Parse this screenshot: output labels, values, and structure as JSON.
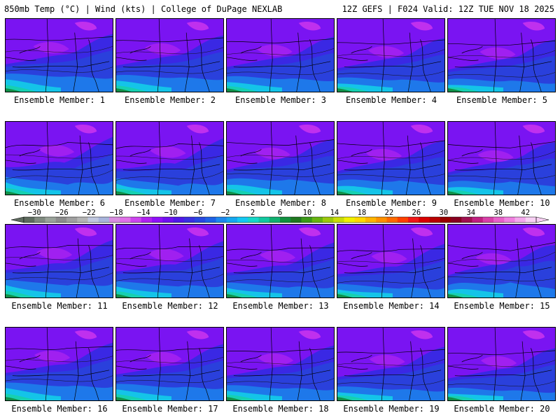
{
  "header": {
    "left": "850mb Temp (°C) | Wind (kts) | College of DuPage NEXLAB",
    "right": "12Z GEFS | F024 Valid: 12Z TUE NOV 18 2025"
  },
  "members": [
    "Ensemble Member: 1",
    "Ensemble Member: 2",
    "Ensemble Member: 3",
    "Ensemble Member: 4",
    "Ensemble Member: 5",
    "Ensemble Member: 6",
    "Ensemble Member: 7",
    "Ensemble Member: 8",
    "Ensemble Member: 9",
    "Ensemble Member: 10",
    "Ensemble Member: 11",
    "Ensemble Member: 12",
    "Ensemble Member: 13",
    "Ensemble Member: 14",
    "Ensemble Member: 15",
    "Ensemble Member: 16",
    "Ensemble Member: 17",
    "Ensemble Member: 18",
    "Ensemble Member: 19",
    "Ensemble Member: 20"
  ],
  "colorbar": {
    "labels": [
      "-30",
      "-26",
      "-22",
      "-18",
      "-14",
      "-10",
      "-6",
      "-2",
      "2",
      "6",
      "10",
      "14",
      "18",
      "22",
      "26",
      "30",
      "34",
      "38",
      "42"
    ],
    "colors": [
      "#5e6b5e",
      "#7f8a7f",
      "#9aa39a",
      "#8c8c8c",
      "#a0a0a0",
      "#b4b4b4",
      "#c0c8e0",
      "#a8b4dc",
      "#d88ce0",
      "#e070e8",
      "#cc44ee",
      "#b020f0",
      "#8f10f8",
      "#7010f0",
      "#5018e8",
      "#3a30e0",
      "#2848e0",
      "#1f62e6",
      "#1e88ec",
      "#16a8f0",
      "#14c8f2",
      "#16d8c8",
      "#12c8a0",
      "#10b070",
      "#109040",
      "#207820",
      "#3c9a18",
      "#68b410",
      "#9cc80c",
      "#c8dc08",
      "#f0f000",
      "#ffd800",
      "#ffb400",
      "#ff9000",
      "#ff6a00",
      "#ff4000",
      "#f01818",
      "#d80000",
      "#b80000",
      "#980000",
      "#880020",
      "#a01050",
      "#c02080",
      "#d840a8",
      "#e860c8",
      "#f080e0",
      "#f4a8ec",
      "#f8d0f4"
    ]
  }
}
